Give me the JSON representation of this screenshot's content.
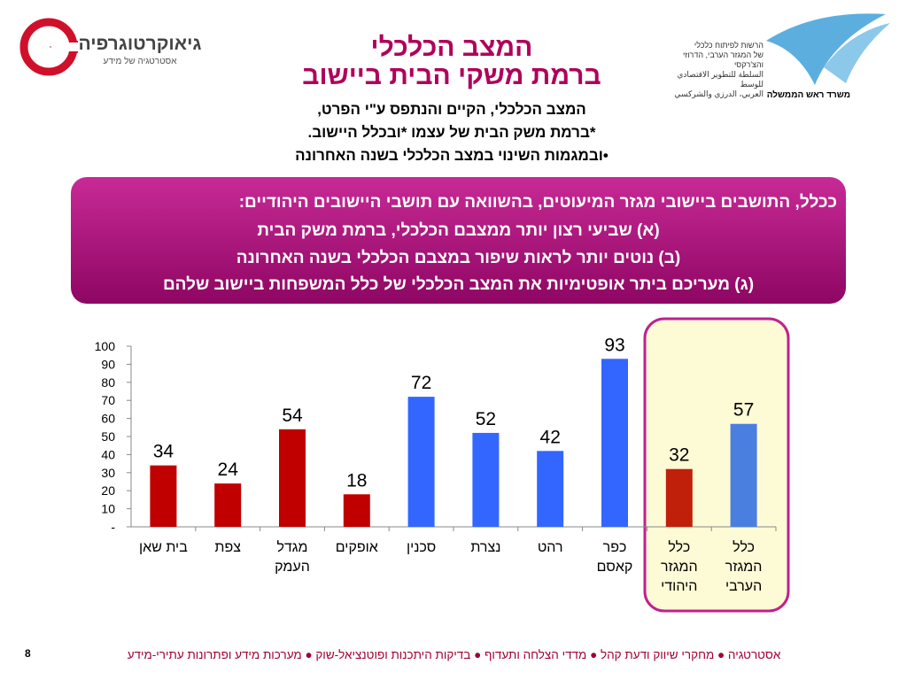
{
  "header": {
    "logo_left_name": "גיאוקרטוגרפיה",
    "logo_left_tagline": "אסטרטגיה של מידע",
    "logo_right_lines": [
      "הרשות לפיתוח כלכלי",
      "של המגזר הערבי, הדרוזי והצ'רקסי",
      "السلطة للتطوير الاقتصادي للوسط",
      "العربي، الدرزي والشركسي"
    ],
    "logo_right_caption": "משרד ראש הממשלה"
  },
  "title_lines": [
    "המצב הכלכלי",
    "ברמת משקי הבית ביישוב"
  ],
  "subtitle_lines": [
    "המצב הכלכלי, הקיים והנתפס ע\"י הפרט,",
    "*ברמת משק הבית של עצמו *ובכלל היישוב.",
    "•ובמגמות השינוי במצב הכלכלי בשנה האחרונה"
  ],
  "highlight_lines": [
    "ככלל, התושבים ביישובי מגזר המיעוטים, בהשוואה עם תושבי היישובים היהודיים:",
    "(א) שביעי רצון יותר ממצבם הכלכלי, ברמת משק הבית",
    "(ב) נוטים יותר לראות שיפור במצבם הכלכלי בשנה האחרונה",
    "(ג) מעריכם ביתר אופטימיות את המצב הכלכלי של כלל המשפחות ביישוב שלהם"
  ],
  "chart_data": {
    "type": "bar",
    "categories": [
      "בית שאן",
      "צפת",
      "מגדל העמק",
      "אופקים",
      "סכנין",
      "נצרת",
      "רהט",
      "כפר קאסם",
      "כלל המגזר היהודי",
      "כלל המגזר הערבי"
    ],
    "values": [
      34,
      24,
      54,
      18,
      72,
      52,
      42,
      93,
      32,
      57
    ],
    "colors": [
      "#c00000",
      "#c00000",
      "#c00000",
      "#c00000",
      "#3366ff",
      "#3366ff",
      "#3366ff",
      "#3366ff",
      "#c0200a",
      "#4a7fe0"
    ],
    "ylim": [
      0,
      100
    ],
    "yticks": [
      {
        "value": 0,
        "label": "-"
      },
      10,
      20,
      30,
      40,
      50,
      60,
      70,
      80,
      90,
      100
    ]
  },
  "footer": "אסטרטגיה ● מחקרי שיווק ודעת קהל ● מדדי הצלחה ותעדוף ● בדיקות היתכנות ופוטנציאל-שוק ● מערכות מידע ופתרונות עתירי-מידע",
  "page_number": "8"
}
